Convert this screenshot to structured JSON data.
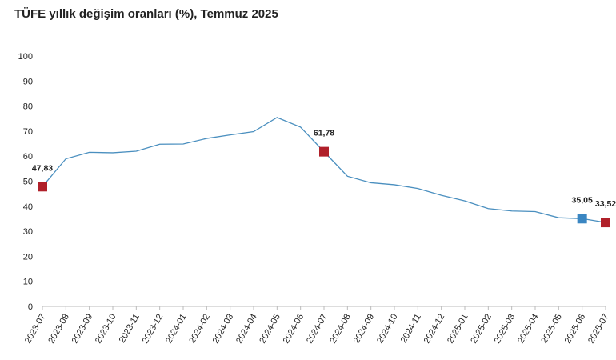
{
  "chart_data": {
    "type": "line",
    "title": "TÜFE yıllık değişim oranları (%), Temmuz 2025",
    "categories": [
      "2023-07",
      "2023-08",
      "2023-09",
      "2023-10",
      "2023-11",
      "2023-12",
      "2024-01",
      "2024-02",
      "2024-03",
      "2024-04",
      "2024-05",
      "2024-06",
      "2024-07",
      "2024-08",
      "2024-09",
      "2024-10",
      "2024-11",
      "2024-12",
      "2025-01",
      "2025-02",
      "2025-03",
      "2025-04",
      "2025-05",
      "2025-06",
      "2025-07"
    ],
    "series": [
      {
        "color": "#4a8fbf",
        "values": [
          47.83,
          58.94,
          61.53,
          61.36,
          61.98,
          64.77,
          64.86,
          67.07,
          68.5,
          69.8,
          75.45,
          71.6,
          61.78,
          51.97,
          49.38,
          48.58,
          47.09,
          44.38,
          42.12,
          39.05,
          38.1,
          37.86,
          35.41,
          35.05,
          33.52
        ],
        "value_labels": [
          "47,83",
          null,
          null,
          null,
          null,
          null,
          null,
          null,
          null,
          null,
          null,
          null,
          "61,78",
          null,
          null,
          null,
          null,
          null,
          null,
          null,
          null,
          null,
          null,
          "35,05",
          "33,52"
        ],
        "marker_colors": [
          "#b0202a",
          null,
          null,
          null,
          null,
          null,
          null,
          null,
          null,
          null,
          null,
          null,
          "#b0202a",
          null,
          null,
          null,
          null,
          null,
          null,
          null,
          null,
          null,
          null,
          "#3a86c2",
          "#b0202a"
        ]
      }
    ],
    "ylim": [
      0,
      100
    ],
    "yticks": [
      0,
      10,
      20,
      30,
      40,
      50,
      60,
      70,
      80,
      90,
      100
    ]
  }
}
